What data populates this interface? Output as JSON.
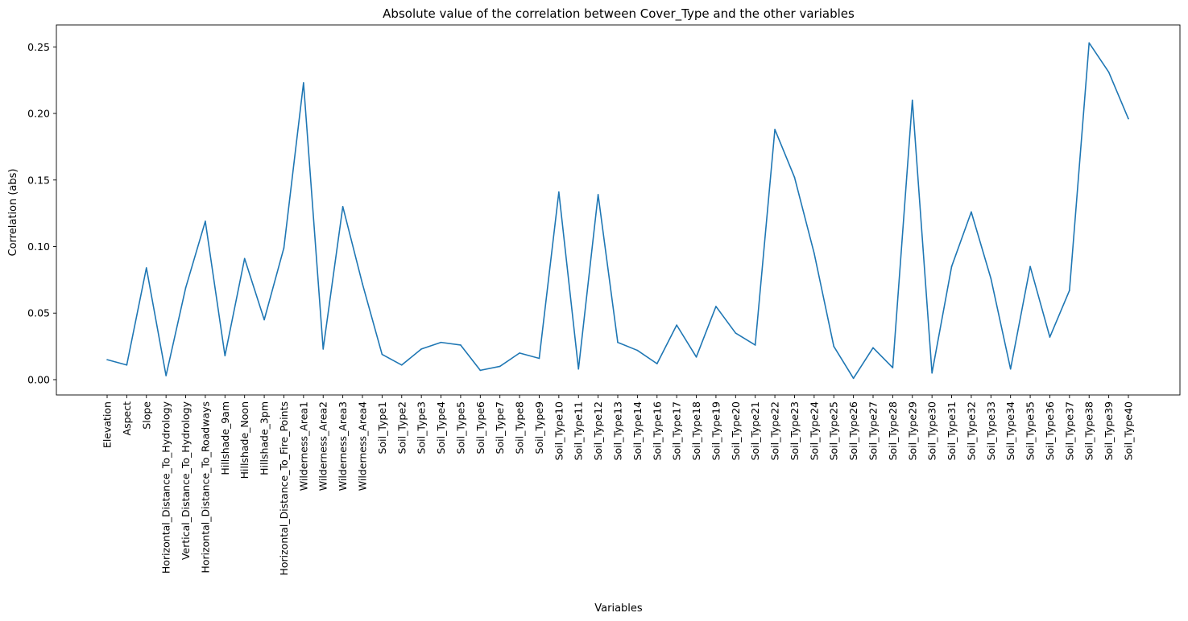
{
  "chart_data": {
    "type": "line",
    "title": "Absolute value of the correlation between Cover_Type and the other variables",
    "xlabel": "Variables",
    "ylabel": "Correlation (abs)",
    "ylim": [
      -0.0115,
      0.2665
    ],
    "yticks": [
      "0.00",
      "0.05",
      "0.10",
      "0.15",
      "0.20",
      "0.25"
    ],
    "grid": false,
    "color": "#1f77b4",
    "categories": [
      "Elevation",
      "Aspect",
      "Slope",
      "Horizontal_Distance_To_Hydrology",
      "Vertical_Distance_To_Hydrology",
      "Horizontal_Distance_To_Roadways",
      "Hillshade_9am",
      "Hillshade_Noon",
      "Hillshade_3pm",
      "Horizontal_Distance_To_Fire_Points",
      "Wilderness_Area1",
      "Wilderness_Area2",
      "Wilderness_Area3",
      "Wilderness_Area4",
      "Soil_Type1",
      "Soil_Type2",
      "Soil_Type3",
      "Soil_Type4",
      "Soil_Type5",
      "Soil_Type6",
      "Soil_Type7",
      "Soil_Type8",
      "Soil_Type9",
      "Soil_Type10",
      "Soil_Type11",
      "Soil_Type12",
      "Soil_Type13",
      "Soil_Type14",
      "Soil_Type16",
      "Soil_Type17",
      "Soil_Type18",
      "Soil_Type19",
      "Soil_Type20",
      "Soil_Type21",
      "Soil_Type22",
      "Soil_Type23",
      "Soil_Type24",
      "Soil_Type25",
      "Soil_Type26",
      "Soil_Type27",
      "Soil_Type28",
      "Soil_Type29",
      "Soil_Type30",
      "Soil_Type31",
      "Soil_Type32",
      "Soil_Type33",
      "Soil_Type34",
      "Soil_Type35",
      "Soil_Type36",
      "Soil_Type37",
      "Soil_Type38",
      "Soil_Type39",
      "Soil_Type40"
    ],
    "values": [
      0.015,
      0.011,
      0.084,
      0.003,
      0.069,
      0.119,
      0.018,
      0.091,
      0.045,
      0.099,
      0.223,
      0.023,
      0.13,
      0.072,
      0.019,
      0.011,
      0.023,
      0.028,
      0.026,
      0.007,
      0.01,
      0.02,
      0.016,
      0.141,
      0.008,
      0.139,
      0.028,
      0.022,
      0.012,
      0.041,
      0.017,
      0.055,
      0.035,
      0.026,
      0.188,
      0.152,
      0.095,
      0.025,
      0.001,
      0.024,
      0.009,
      0.21,
      0.005,
      0.085,
      0.126,
      0.076,
      0.008,
      0.085,
      0.032,
      0.067,
      0.253,
      0.231,
      0.196
    ]
  }
}
